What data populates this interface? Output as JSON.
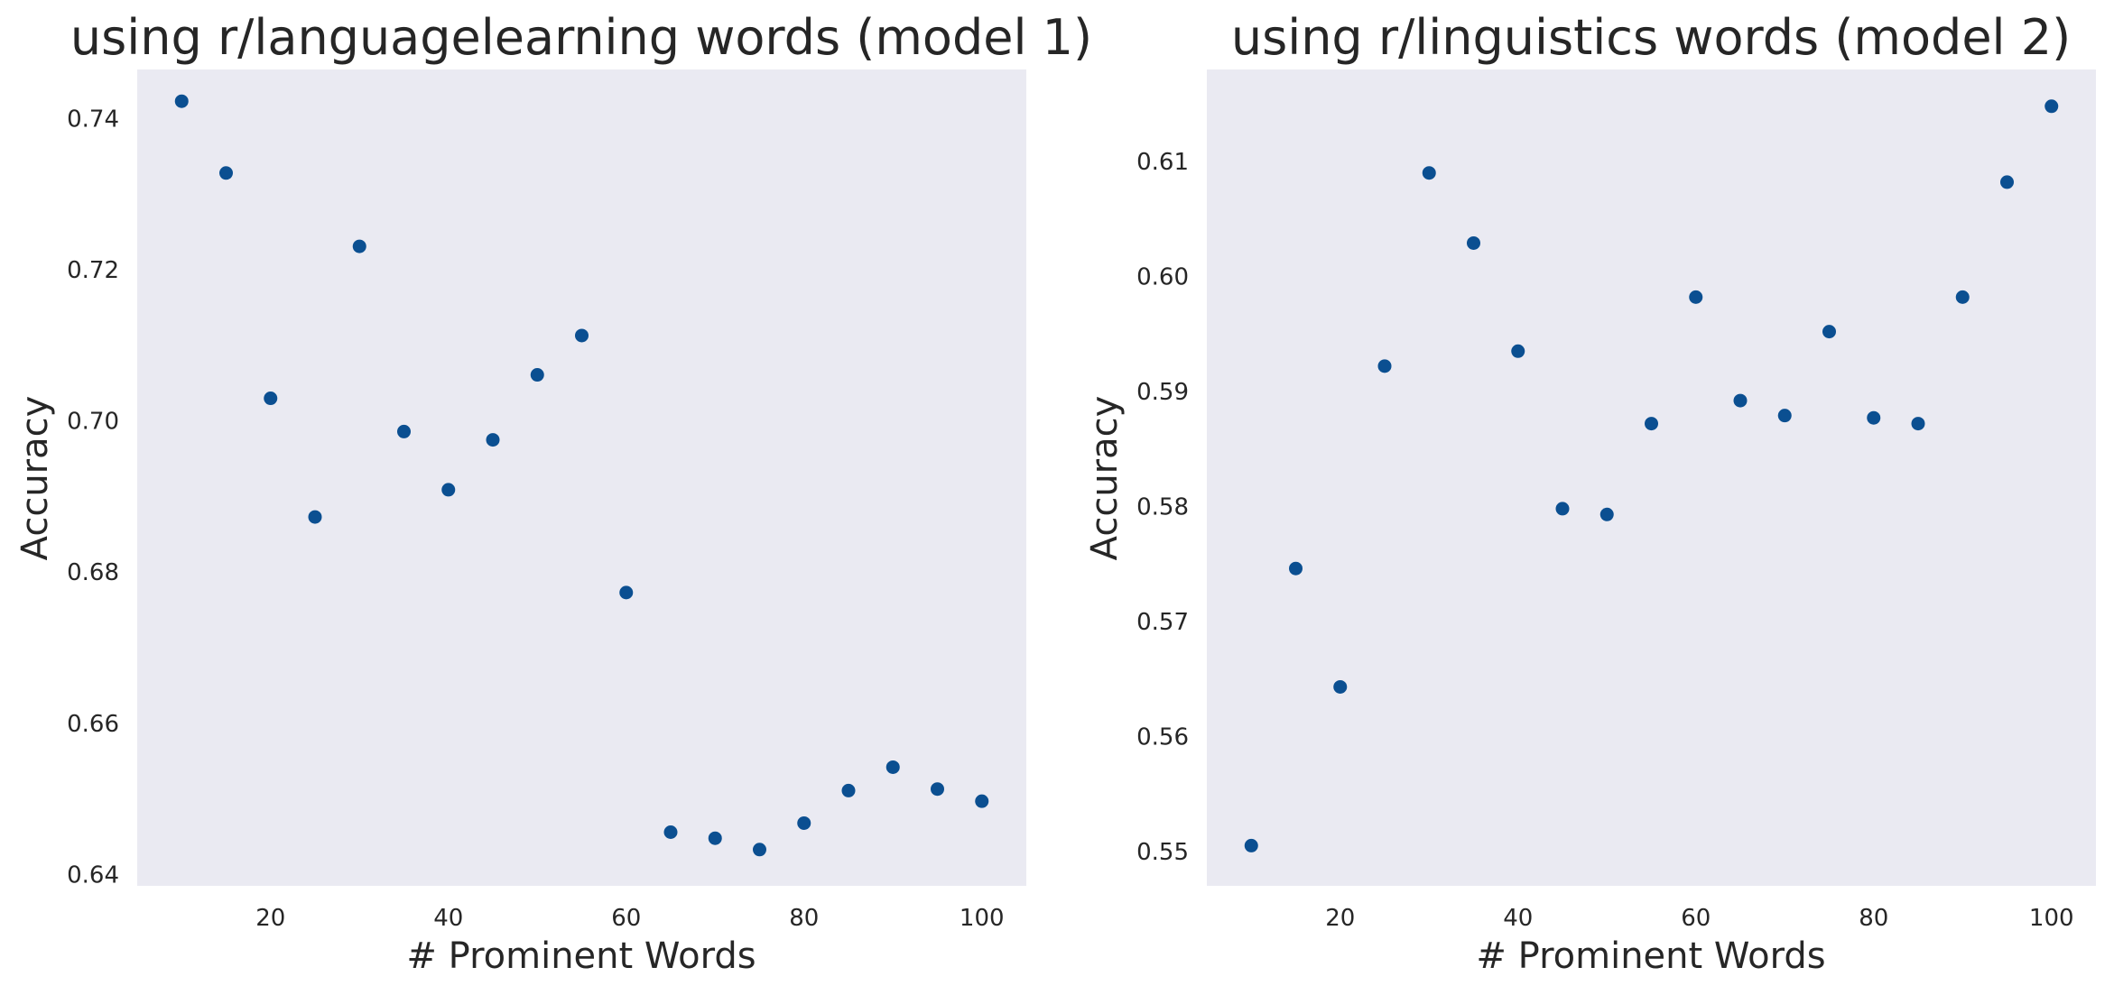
{
  "figure": {
    "background": "#ffffff",
    "plot_background": "#eaeaf2",
    "marker_color": "#0b4f91"
  },
  "chart_data": [
    {
      "type": "scatter",
      "title": "using r/languagelearning words (model 1)",
      "xlabel": "# Prominent Words",
      "ylabel": "Accuracy",
      "grid": false,
      "legend": "none",
      "xlim": [
        5,
        105
      ],
      "ylim": [
        0.6385,
        0.7465
      ],
      "xticks": [
        20,
        40,
        60,
        80,
        100
      ],
      "xtick_labels": [
        "20",
        "40",
        "60",
        "80",
        "100"
      ],
      "yticks": [
        0.64,
        0.66,
        0.68,
        0.7,
        0.72,
        0.74
      ],
      "ytick_labels": [
        "0.64",
        "0.66",
        "0.68",
        "0.70",
        "0.72",
        "0.74"
      ],
      "x": [
        10,
        15,
        20,
        25,
        30,
        35,
        40,
        45,
        50,
        55,
        60,
        65,
        70,
        75,
        80,
        85,
        90,
        95,
        100
      ],
      "y": [
        0.7423,
        0.7328,
        0.703,
        0.6873,
        0.7231,
        0.6986,
        0.6909,
        0.6975,
        0.7061,
        0.7113,
        0.6773,
        0.6456,
        0.6448,
        0.6433,
        0.6468,
        0.6511,
        0.6542,
        0.6513,
        0.6497
      ]
    },
    {
      "type": "scatter",
      "title": "using r/linguistics words (model 2)",
      "xlabel": "# Prominent Words",
      "ylabel": "Accuracy",
      "grid": false,
      "legend": "none",
      "xlim": [
        5,
        105
      ],
      "ylim": [
        0.547,
        0.618
      ],
      "xticks": [
        20,
        40,
        60,
        80,
        100
      ],
      "xtick_labels": [
        "20",
        "40",
        "60",
        "80",
        "100"
      ],
      "yticks": [
        0.55,
        0.56,
        0.57,
        0.58,
        0.59,
        0.6,
        0.61
      ],
      "ytick_labels": [
        "0.55",
        "0.56",
        "0.57",
        "0.58",
        "0.59",
        "0.60",
        "0.61"
      ],
      "x": [
        10,
        15,
        20,
        25,
        30,
        35,
        40,
        45,
        50,
        55,
        60,
        65,
        70,
        75,
        80,
        85,
        90,
        95,
        100
      ],
      "y": [
        0.5505,
        0.5746,
        0.5643,
        0.5922,
        0.609,
        0.6029,
        0.5935,
        0.5798,
        0.5793,
        0.5872,
        0.5982,
        0.5892,
        0.5879,
        0.5952,
        0.5877,
        0.5872,
        0.5982,
        0.6082,
        0.6148
      ]
    }
  ]
}
